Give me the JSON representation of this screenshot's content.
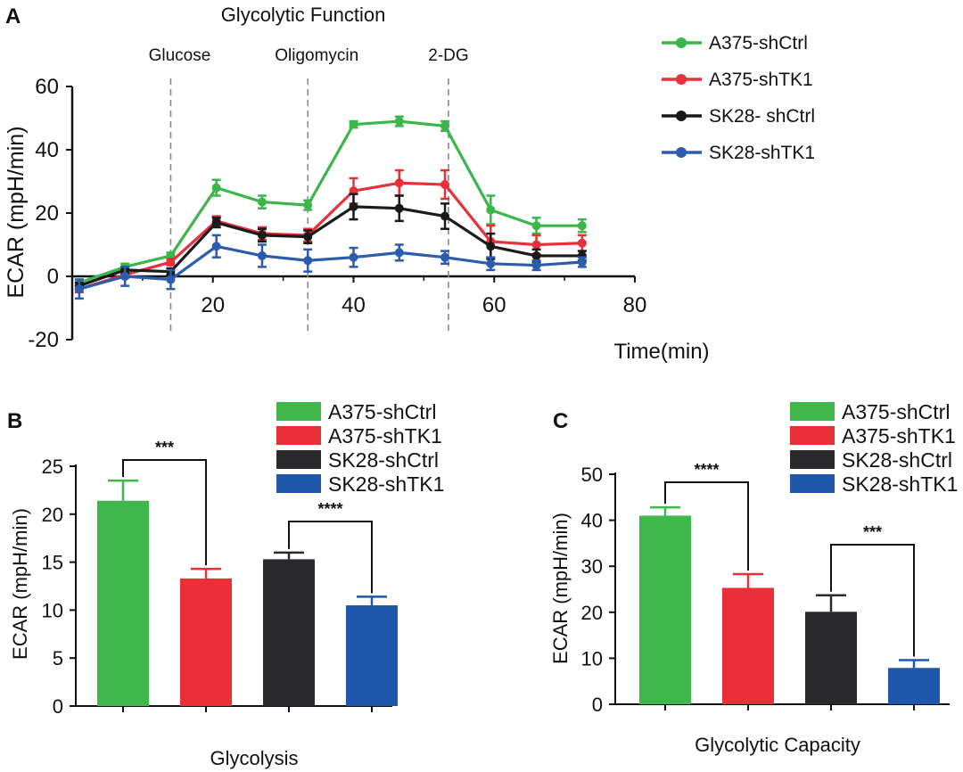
{
  "colors": {
    "A375-shCtrl": "#3cb64a",
    "A375-shTK1": "#e8303a",
    "SK28-shCtrl": "#1a1a1a",
    "SK28-shTK1": "#2b5cad",
    "bar_A375-shCtrl": "#3fb74b",
    "bar_A375-shTK1": "#ea2f38",
    "bar_SK28-shCtrl": "#2a2a2c",
    "bar_SK28-shTK1": "#1f58aa"
  },
  "chart_data": [
    {
      "panel": "A",
      "type": "line",
      "title": "Glycolytic Function",
      "xlabel": "Time(min)",
      "ylabel": "ECAR (mpH/min)",
      "xlim": [
        0,
        80
      ],
      "ylim": [
        -20,
        60
      ],
      "xticks": [
        "20",
        "40",
        "60",
        "80"
      ],
      "yticks": [
        "60",
        "40",
        "20",
        "0",
        "-20"
      ],
      "treatments": [
        {
          "label": "Glucose",
          "x": 14
        },
        {
          "label": "Oligomycin",
          "x": 33.5
        },
        {
          "label": "2-DG",
          "x": 53.5
        }
      ],
      "series": [
        {
          "name": "A375-shCtrl",
          "x": [
            1,
            7.5,
            14,
            20.5,
            27,
            33.5,
            40,
            46.5,
            53,
            59.5,
            66,
            72.5
          ],
          "values": [
            -2,
            3,
            6.5,
            28,
            23.5,
            22.5,
            48,
            49,
            47.5,
            21,
            16,
            16
          ],
          "errors": [
            1,
            1,
            1,
            2.5,
            2,
            1.5,
            1,
            1.5,
            1.5,
            4.5,
            2.5,
            2
          ]
        },
        {
          "name": "A375-shTK1",
          "x": [
            1,
            7.5,
            14,
            20.5,
            27,
            33.5,
            40,
            46.5,
            53,
            59.5,
            66,
            72.5
          ],
          "values": [
            -4,
            0.5,
            4.5,
            17.5,
            13.5,
            13,
            27,
            29.5,
            29,
            11,
            10,
            10.5
          ],
          "errors": [
            1,
            1,
            1,
            1.5,
            2,
            2,
            4,
            4,
            4.5,
            5,
            3,
            2.5
          ]
        },
        {
          "name": "SK28-shCtrl",
          "x": [
            1,
            7.5,
            14,
            20.5,
            27,
            33.5,
            40,
            46.5,
            53,
            59.5,
            66,
            72.5
          ],
          "values": [
            -3,
            2,
            1.5,
            17,
            13,
            12.5,
            22,
            21.5,
            19,
            9.5,
            6.5,
            6.5
          ],
          "errors": [
            1,
            1,
            1,
            1.5,
            2,
            2,
            4,
            4,
            4,
            4,
            2,
            1.5
          ]
        },
        {
          "name": "SK28-shTK1",
          "x": [
            1,
            7.5,
            14,
            20.5,
            27,
            33.5,
            40,
            46.5,
            53,
            59.5,
            66,
            72.5
          ],
          "values": [
            -4,
            0,
            -1,
            9.5,
            6.5,
            5,
            6,
            7.5,
            6,
            4,
            3.5,
            4.5
          ],
          "errors": [
            3,
            3,
            3,
            3.5,
            3.5,
            3.5,
            3,
            2.5,
            2,
            2,
            1.5,
            1.5
          ]
        }
      ],
      "legend": [
        "A375-shCtrl",
        "A375-shTK1",
        "SK28- shCtrl",
        "SK28-shTK1"
      ],
      "legend_position": "right"
    },
    {
      "panel": "B",
      "type": "bar",
      "xlabel": "Glycolysis",
      "ylabel": "ECAR (mpH/min)",
      "ylim": [
        0,
        25
      ],
      "yticks": [
        "25",
        "20",
        "15",
        "10",
        "5",
        "0"
      ],
      "categories": [
        "A375-shCtrl",
        "A375-shTK1",
        "SK28-shCtrl",
        "SK28-shTK1"
      ],
      "values": [
        21.4,
        13.3,
        15.3,
        10.5
      ],
      "errors": [
        2.1,
        1.0,
        0.7,
        0.9
      ],
      "significance": [
        {
          "from": 0,
          "to": 1,
          "label": "***"
        },
        {
          "from": 2,
          "to": 3,
          "label": "****"
        }
      ],
      "legend": [
        "A375-shCtrl",
        "A375-shTK1",
        "SK28-shCtrl",
        "SK28-shTK1"
      ],
      "legend_position": "top-right"
    },
    {
      "panel": "C",
      "type": "bar",
      "xlabel": "Glycolytic Capacity",
      "ylabel": "ECAR (mpH/min)",
      "ylim": [
        0,
        50
      ],
      "yticks": [
        "50",
        "40",
        "30",
        "20",
        "10",
        "0"
      ],
      "categories": [
        "A375-shCtrl",
        "A375-shTK1",
        "SK28-shCtrl",
        "SK28-shTK1"
      ],
      "values": [
        41,
        25.3,
        20.1,
        7.9
      ],
      "errors": [
        1.8,
        3.0,
        3.6,
        1.7
      ],
      "significance": [
        {
          "from": 0,
          "to": 1,
          "label": "****"
        },
        {
          "from": 2,
          "to": 3,
          "label": "***"
        }
      ],
      "legend": [
        "A375-shCtrl",
        "A375-shTK1",
        "SK28-shCtrl",
        "SK28-shTK1"
      ],
      "legend_position": "top-right"
    }
  ]
}
